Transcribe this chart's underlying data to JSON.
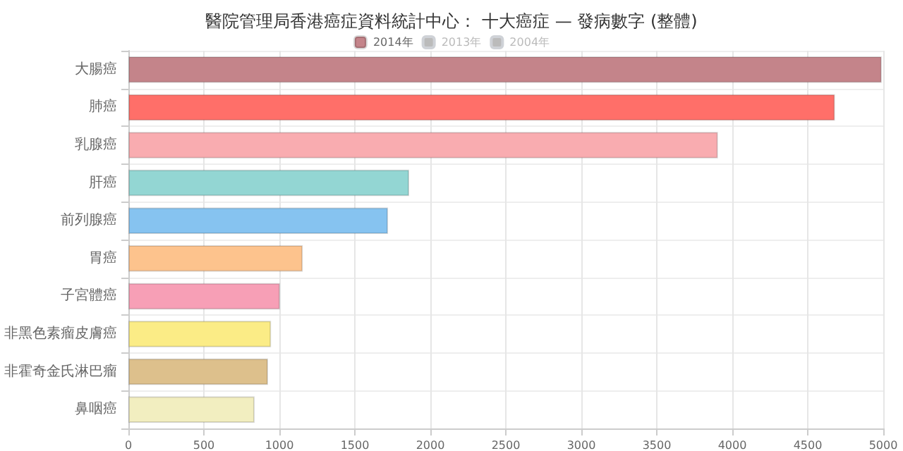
{
  "chart_data": {
    "type": "bar",
    "orientation": "horizontal",
    "title": "醫院管理局香港癌症資料統計中心： 十大癌症 — 發病數字 (整體)",
    "categories": [
      "大腸癌",
      "肺癌",
      "乳腺癌",
      "肝癌",
      "前列腺癌",
      "胃癌",
      "子宮體癌",
      "非黑色素瘤皮膚癌",
      "非霍奇金氏淋巴瘤",
      "鼻咽癌"
    ],
    "series": [
      {
        "name": "2014年",
        "color": "#c4848a",
        "colors": [
          "#c4848a",
          "#ff6f69",
          "#f9acb0",
          "#93d6d3",
          "#86c3f0",
          "#fdc38d",
          "#f79fb6",
          "#fbec86",
          "#ddc08c",
          "#f2eec0"
        ],
        "values": [
          4990,
          4680,
          3905,
          1860,
          1720,
          1155,
          1004,
          945,
          925,
          836
        ]
      },
      {
        "name": "2013年",
        "color": "#cccccc",
        "values": [
          null,
          null,
          null,
          null,
          null,
          null,
          null,
          null,
          null,
          null
        ]
      },
      {
        "name": "2004年",
        "color": "#cccccc",
        "values": [
          null,
          null,
          null,
          null,
          null,
          null,
          null,
          null,
          null,
          null
        ]
      }
    ],
    "xlim": [
      0,
      5000
    ],
    "xticks": [
      0,
      500,
      1000,
      1500,
      2000,
      2500,
      3000,
      3500,
      4000,
      4500,
      5000
    ],
    "grid": true,
    "legend": "top"
  }
}
